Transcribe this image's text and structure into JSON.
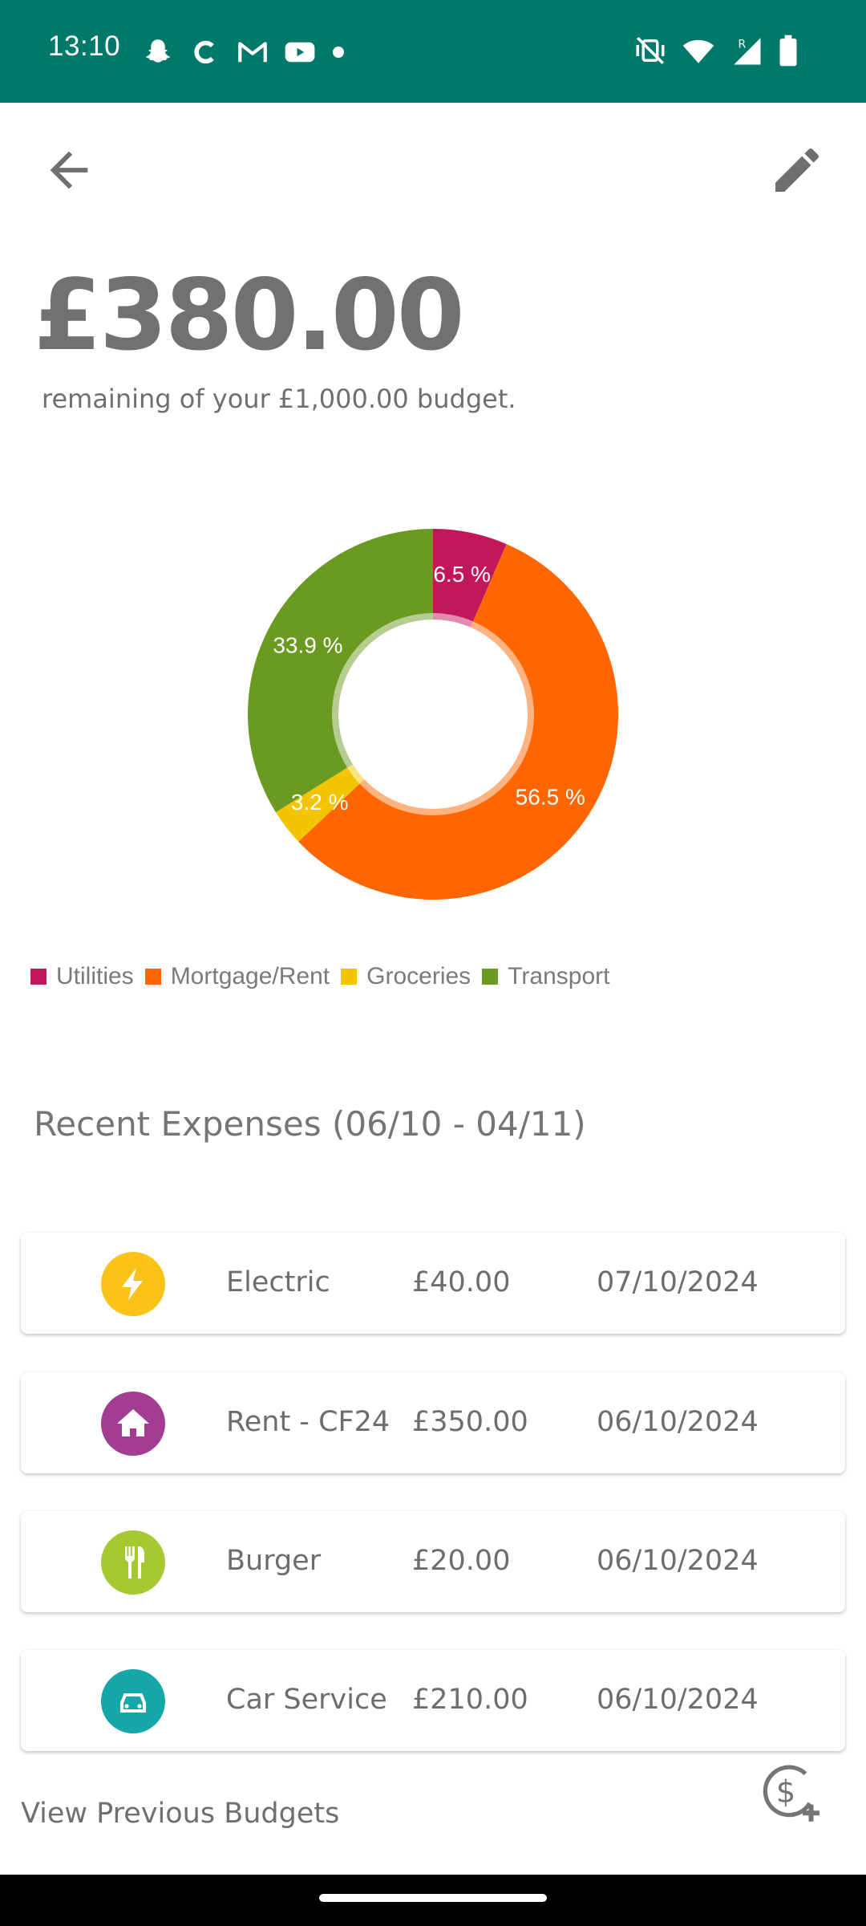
{
  "status_bar": {
    "time": "13:10",
    "left_icons": [
      "snapchat-icon",
      "c-app-icon",
      "gmail-icon",
      "youtube-icon",
      "dot-icon"
    ],
    "right_icons": [
      "vibrate-off-icon",
      "wifi-icon",
      "signal-roaming-icon",
      "battery-icon"
    ],
    "background": "#00796b"
  },
  "app_bar": {
    "back_icon": "arrow-back-icon",
    "edit_icon": "pencil-icon"
  },
  "summary": {
    "remaining": "£380.00",
    "subtitle": "remaining of your £1,000.00 budget."
  },
  "chart_data": {
    "type": "pie",
    "donut": true,
    "categories": [
      "Utilities",
      "Mortgage/Rent",
      "Groceries",
      "Transport"
    ],
    "values": [
      6.5,
      56.5,
      3.2,
      33.9
    ],
    "labels": [
      "6.5 %",
      "56.5 %",
      "3.2 %",
      "33.9 %"
    ],
    "colors": [
      "#c2185b",
      "#ff6600",
      "#f2c500",
      "#6b9a21"
    ],
    "legend_position": "bottom-left"
  },
  "recent_expenses": {
    "title": "Recent Expenses (06/10 - 04/11)",
    "items": [
      {
        "name": "Electric",
        "amount": "£40.00",
        "date": "07/10/2024",
        "icon": "lightning-bolt-icon",
        "icon_color": "#fbc21a"
      },
      {
        "name": "Rent - CF24",
        "amount": "£350.00",
        "date": "06/10/2024",
        "icon": "house-icon",
        "icon_color": "#a23d93"
      },
      {
        "name": "Burger",
        "amount": "£20.00",
        "date": "06/10/2024",
        "icon": "fork-knife-icon",
        "icon_color": "#a6c832"
      },
      {
        "name": "Car Service",
        "amount": "£210.00",
        "date": "06/10/2024",
        "icon": "car-icon",
        "icon_color": "#15a7a9"
      }
    ]
  },
  "footer": {
    "view_previous": "View Previous Budgets",
    "add_expense_icon": "dollar-add-icon"
  }
}
